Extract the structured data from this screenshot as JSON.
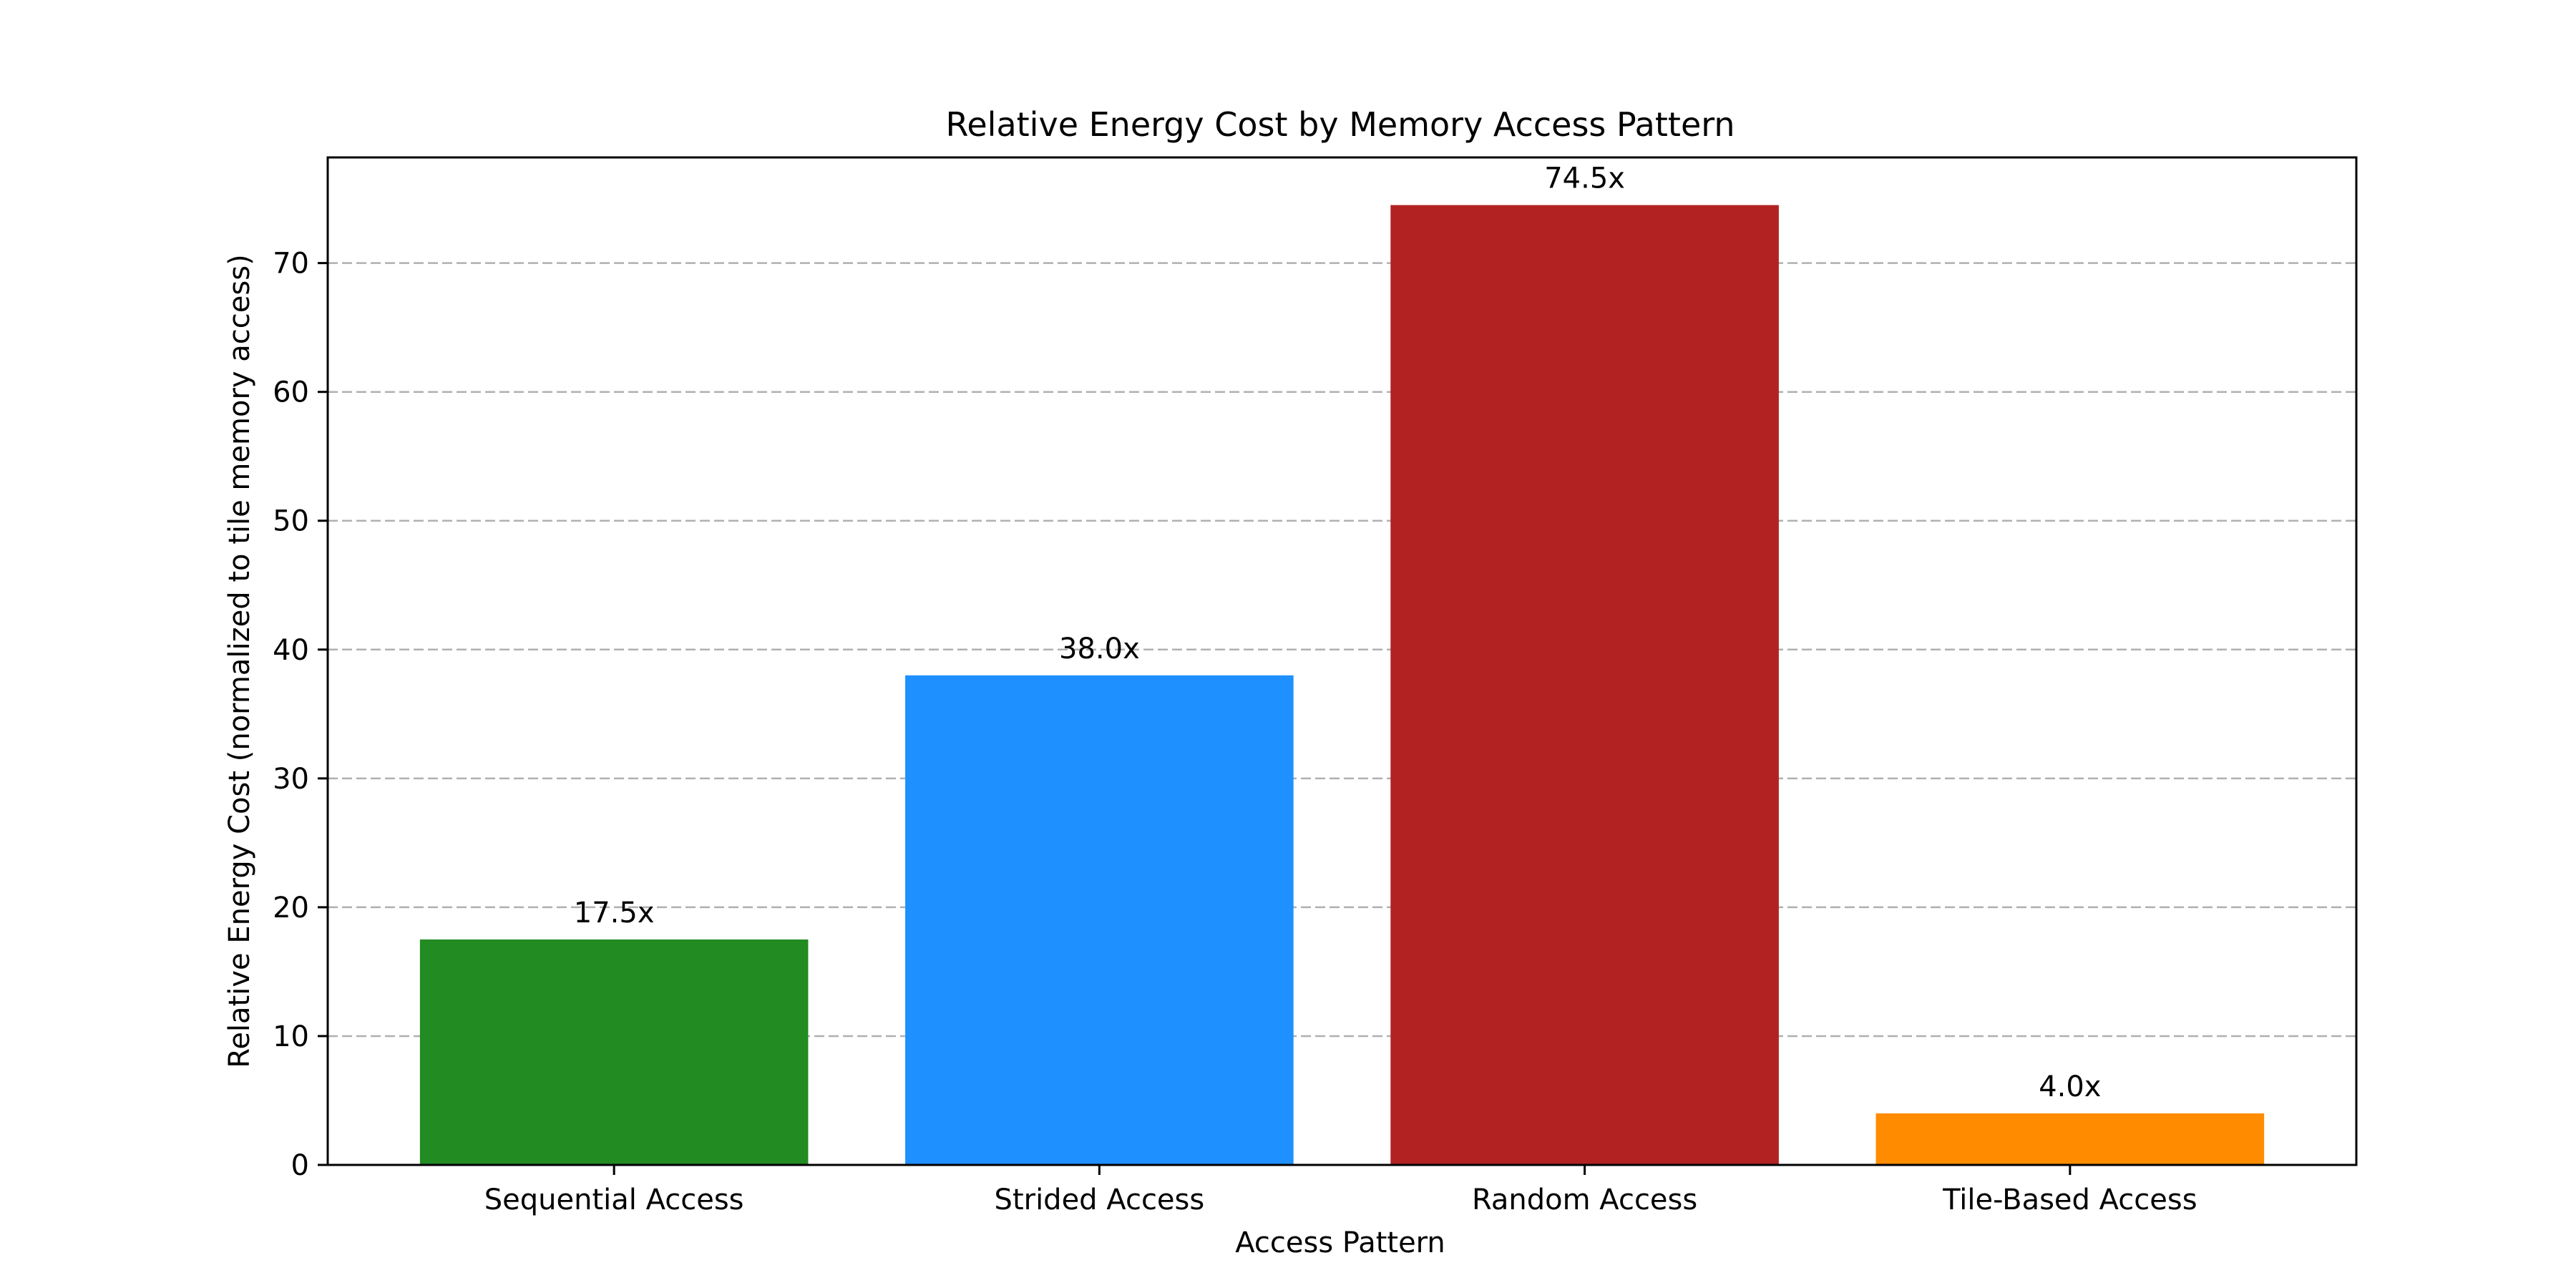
{
  "chart_data": {
    "type": "bar",
    "title": "Relative Energy Cost by Memory Access Pattern",
    "xlabel": "Access Pattern",
    "ylabel": "Relative Energy Cost (normalized to tile memory access)",
    "categories": [
      "Sequential Access",
      "Strided Access",
      "Random Access",
      "Tile-Based Access"
    ],
    "values": [
      17.5,
      38.0,
      74.5,
      4.0
    ],
    "data_labels": [
      "17.5x",
      "38.0x",
      "74.5x",
      "4.0x"
    ],
    "colors": [
      "#228b22",
      "#1e90ff",
      "#b22222",
      "#ff8c00"
    ],
    "ylim": [
      0,
      78.2
    ],
    "yticks": [
      0,
      10,
      20,
      30,
      40,
      50,
      60,
      70
    ],
    "grid": "y-dashed",
    "legend": "none"
  }
}
